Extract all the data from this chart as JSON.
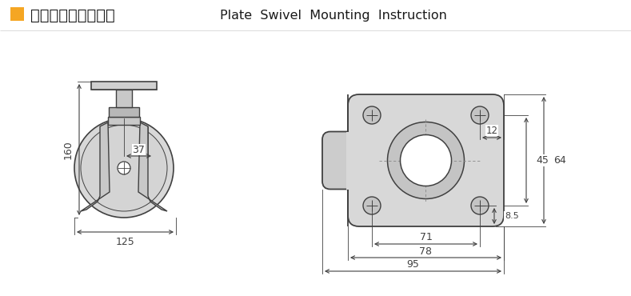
{
  "title_chinese": "平顶万向安装尺寸图",
  "title_english": "Plate  Swivel  Mounting  Instruction",
  "orange_color": "#F5A623",
  "line_color": "#404040",
  "dim_color": "#404040",
  "bg_color": "#ffffff",
  "gray_fill": "#e0e0e0",
  "gray_dark": "#c0c0c0",
  "dim_37": "37",
  "dim_160": "160",
  "dim_125": "125",
  "dim_71": "71",
  "dim_78": "78",
  "dim_95": "95",
  "dim_45": "45",
  "dim_64": "64",
  "dim_12": "12",
  "dim_8_5": "8.5"
}
